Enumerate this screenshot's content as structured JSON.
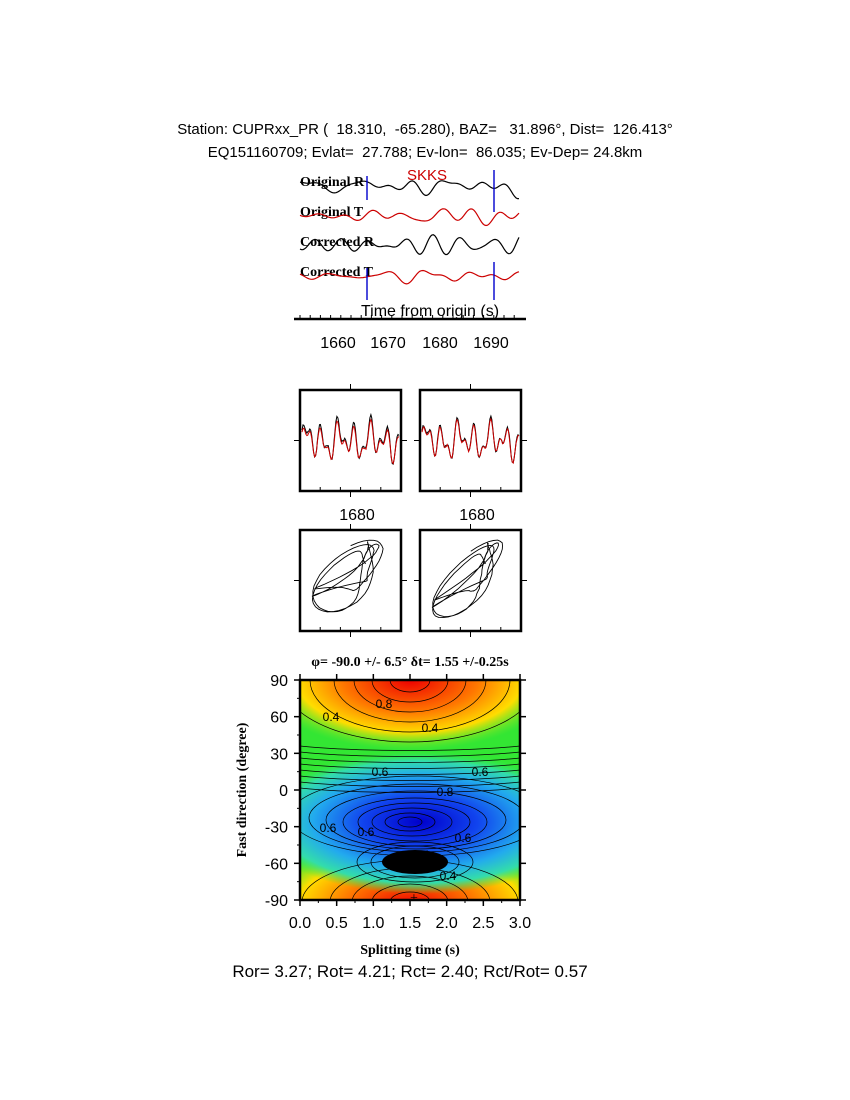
{
  "header": {
    "line1": "Station: CUPRxx_PR (  18.310,  -65.280), BAZ=   31.896°, Dist=  126.413°",
    "line2": "EQ151160709; Evlat=  27.788; Ev-lon=  86.035; Ev-Dep= 24.8km"
  },
  "traces": {
    "phase": "SKKS",
    "labels": [
      "Original R",
      "Original T",
      "Corrected R",
      "Corrected T"
    ],
    "axis_label": "Time from origin (s)",
    "ticks": [
      "1660",
      "1670",
      "1680",
      "1690"
    ],
    "colors": [
      "#000000",
      "#cc0000",
      "#000000",
      "#cc0000"
    ]
  },
  "waveforms": {
    "tick_left": "1680",
    "tick_right": "1680"
  },
  "contour": {
    "title": "φ= -90.0 +/- 6.5° δt= 1.55 +/-0.25s",
    "xlabel": "Splitting time (s)",
    "ylabel": "Fast direction (degree)",
    "xticks": [
      "0.0",
      "0.5",
      "1.0",
      "1.5",
      "2.0",
      "2.5",
      "3.0"
    ],
    "yticks": [
      "90",
      "60",
      "30",
      "0",
      "-30",
      "-60",
      "-90"
    ],
    "contour_labels": [
      "0.8",
      "0.4",
      "0.4",
      "0.6",
      "0.6",
      "0.8",
      "0.6",
      "0.6",
      "0.6",
      "0.4",
      "0.4",
      "0.4"
    ]
  },
  "chart_data": [
    {
      "type": "line",
      "title": "Original R / Original T / Corrected R / Corrected T",
      "xlabel": "Time from origin (s)",
      "x_ticks": [
        1660,
        1670,
        1680,
        1690
      ],
      "xlim": [
        1653,
        1697
      ],
      "annotations": [
        "SKKS"
      ],
      "series": [
        {
          "name": "Original R",
          "color": "#000000"
        },
        {
          "name": "Original T",
          "color": "#cc0000"
        },
        {
          "name": "Corrected R",
          "color": "#000000"
        },
        {
          "name": "Corrected T",
          "color": "#cc0000"
        }
      ]
    },
    {
      "type": "heatmap",
      "title": "φ= -90.0 +/- 6.5° δt= 1.55 +/-0.25s",
      "xlabel": "Splitting time (s)",
      "ylabel": "Fast direction (degree)",
      "xlim": [
        0.0,
        3.0
      ],
      "ylim": [
        -90,
        90
      ],
      "x_ticks": [
        0.0,
        0.5,
        1.0,
        1.5,
        2.0,
        2.5,
        3.0
      ],
      "y_ticks": [
        90,
        60,
        30,
        0,
        -30,
        -60,
        -90
      ],
      "best_fit": {
        "phi": -90.0,
        "phi_err": 6.5,
        "dt": 1.55,
        "dt_err": 0.25
      },
      "contour_levels": [
        0.4,
        0.6,
        0.8
      ],
      "colors": {
        "min": "#0000dd",
        "mid": "#22ee22",
        "max": "#ee0000"
      }
    }
  ],
  "footer": "Ror= 3.27; Rot= 4.21; Rct= 2.40; Rct/Rot= 0.57"
}
